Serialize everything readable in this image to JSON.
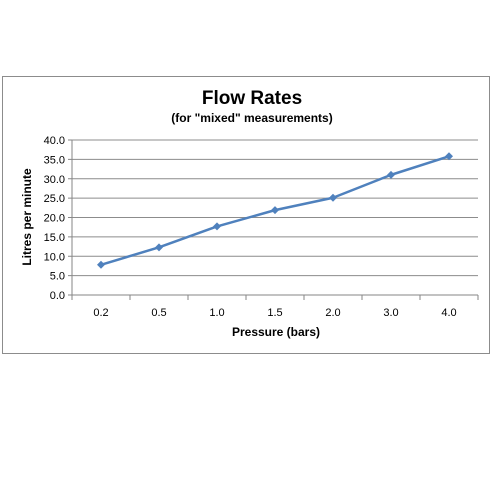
{
  "chart_data": {
    "type": "line",
    "title": "Flow Rates",
    "subtitle": "(for \"mixed\" measurements)",
    "xlabel": "Pressure (bars)",
    "ylabel": "Litres per minute",
    "categories": [
      "0.2",
      "0.5",
      "1.0",
      "1.5",
      "2.0",
      "3.0",
      "4.0"
    ],
    "series": [
      {
        "values": [
          7.8,
          12.3,
          17.7,
          21.9,
          25.1,
          31.0,
          35.8
        ],
        "color": "#4f81bd",
        "marker": "diamond"
      }
    ],
    "ylim": [
      0,
      40
    ],
    "yticks": [
      "0.0",
      "5.0",
      "10.0",
      "15.0",
      "20.0",
      "25.0",
      "30.0",
      "35.0",
      "40.0"
    ],
    "grid": true,
    "legend": "none"
  }
}
